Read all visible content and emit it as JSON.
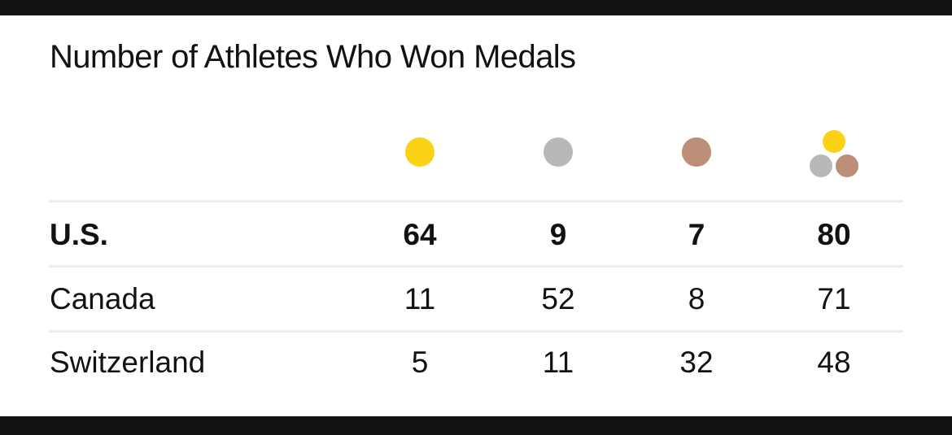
{
  "chart_data": {
    "type": "table",
    "title": "Number of Athletes Who Won Medals",
    "columns": [
      {
        "key": "gold",
        "icon": "gold-medal-icon",
        "color": "#FCD116"
      },
      {
        "key": "silver",
        "icon": "silver-medal-icon",
        "color": "#B8B8B8"
      },
      {
        "key": "bronze",
        "icon": "bronze-medal-icon",
        "color": "#BC8E78"
      },
      {
        "key": "total",
        "icon": "total-medals-icon",
        "colors": [
          "#FCD116",
          "#B8B8B8",
          "#BC8E78"
        ]
      }
    ],
    "rows": [
      {
        "country": "U.S.",
        "bold": true,
        "values": [
          "64",
          "9",
          "7",
          "80"
        ]
      },
      {
        "country": "Canada",
        "bold": false,
        "values": [
          "11",
          "52",
          "8",
          "71"
        ]
      },
      {
        "country": "Switzerland",
        "bold": false,
        "values": [
          "5",
          "11",
          "32",
          "48"
        ]
      }
    ]
  }
}
